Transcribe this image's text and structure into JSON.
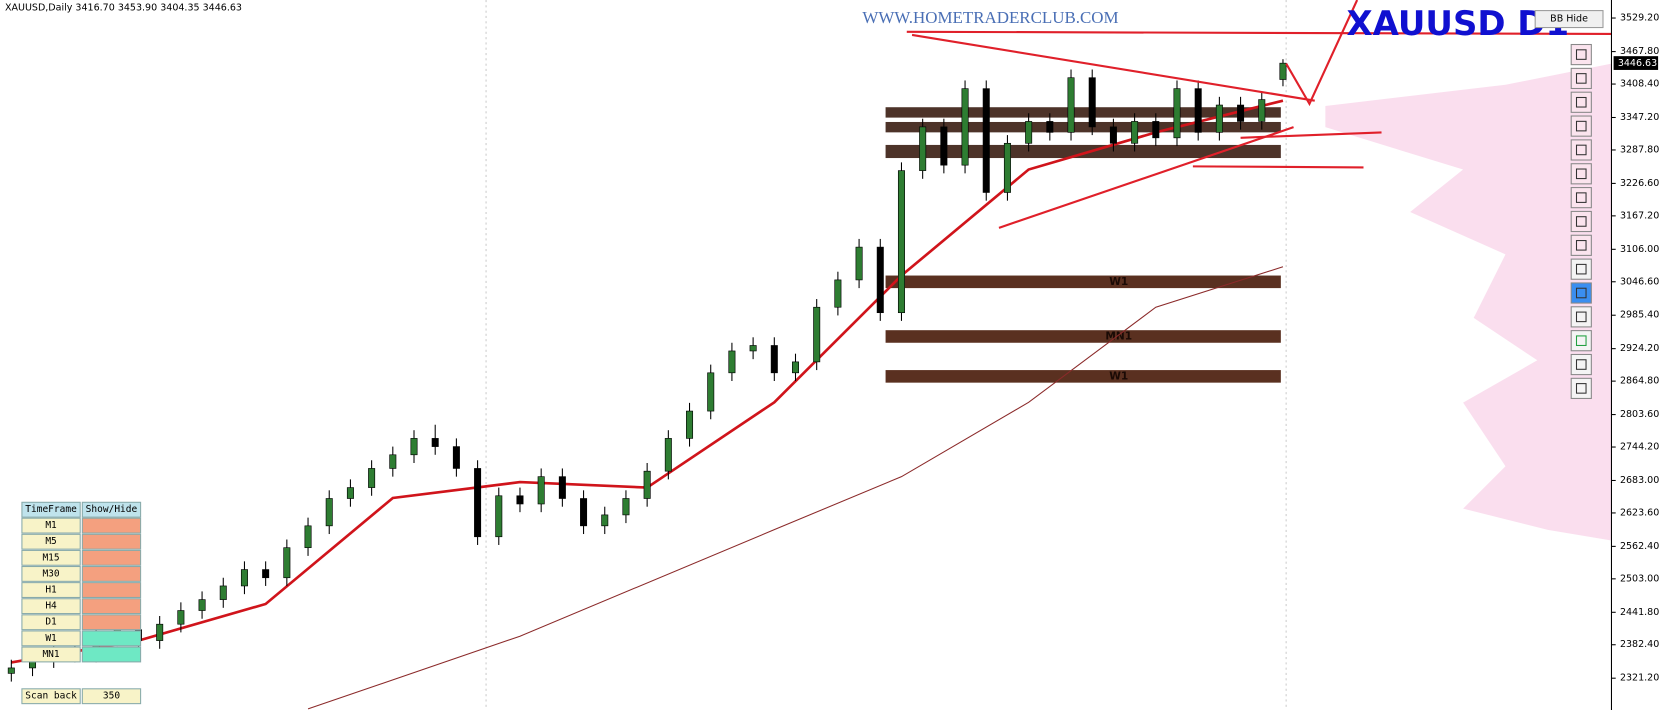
{
  "header": {
    "symbol": "XAUUSD,Daily",
    "ohlc": [
      "3416.70",
      "3453.90",
      "3404.35",
      "3446.63"
    ]
  },
  "watermark": "WWW.HOMETRADERCLUB.COM",
  "chart_title": "XAUUSD  D1",
  "button": "BB Hide",
  "price_tag": "3446.63",
  "chart_data": {
    "type": "candlestick",
    "ylim": [
      2263,
      3562.2
    ],
    "yticks": [
      {
        "value": 3529.2,
        "label": "3529.20"
      },
      {
        "value": 3467.8,
        "label": "3467.80"
      },
      {
        "value": 3408.4,
        "label": "3408.40"
      },
      {
        "value": 3347.2,
        "label": "3347.20"
      },
      {
        "value": 3287.8,
        "label": "3287.80"
      },
      {
        "value": 3226.6,
        "label": "3226.60"
      },
      {
        "value": 3167.2,
        "label": "3167.20"
      },
      {
        "value": 3106,
        "label": "3106.00"
      },
      {
        "value": 3046.6,
        "label": "3046.60"
      },
      {
        "value": 2985.4,
        "label": "2985.40"
      },
      {
        "value": 2924.2,
        "label": "2924.20"
      },
      {
        "value": 2864.8,
        "label": "2864.80"
      },
      {
        "value": 2803.6,
        "label": "2803.60"
      },
      {
        "value": 2744.2,
        "label": "2744.20"
      },
      {
        "value": 2683,
        "label": "2683.00"
      },
      {
        "value": 2623.6,
        "label": "2623.60"
      },
      {
        "value": 2562.4,
        "label": "2562.40"
      },
      {
        "value": 2503,
        "label": "2503.00"
      },
      {
        "value": 2441.8,
        "label": "2441.80"
      },
      {
        "value": 2382.4,
        "label": "2382.40"
      },
      {
        "value": 2321.2,
        "label": "2321.20"
      }
    ],
    "open": [
      2330,
      2340,
      2355,
      2370,
      2365,
      2395,
      2410,
      2390,
      2420,
      2445,
      2465,
      2490,
      2520,
      2505,
      2560,
      2600,
      2650,
      2670,
      2705,
      2730,
      2760,
      2745,
      2705,
      2580,
      2655,
      2640,
      2690,
      2650,
      2600,
      2620,
      2650,
      2700,
      2760,
      2810,
      2880,
      2920,
      2930,
      2880,
      2900,
      3000,
      3050,
      3110,
      2990,
      3250,
      3330,
      3260,
      3400,
      3210,
      3300,
      3340,
      3320,
      3420,
      3330,
      3300,
      3340,
      3310,
      3400,
      3320,
      3370,
      3340,
      3416.7
    ],
    "high": [
      2355,
      2370,
      2385,
      2385,
      2410,
      2425,
      2425,
      2435,
      2460,
      2480,
      2505,
      2535,
      2535,
      2575,
      2615,
      2665,
      2685,
      2720,
      2745,
      2775,
      2785,
      2760,
      2720,
      2670,
      2670,
      2705,
      2705,
      2665,
      2635,
      2665,
      2715,
      2775,
      2825,
      2895,
      2935,
      2945,
      2945,
      2915,
      3015,
      3065,
      3125,
      3125,
      3265,
      3345,
      3345,
      3415,
      3415,
      3315,
      3355,
      3355,
      3435,
      3435,
      3345,
      3355,
      3355,
      3415,
      3415,
      3385,
      3385,
      3395,
      3453.9
    ],
    "low": [
      2315,
      2325,
      2340,
      2350,
      2350,
      2380,
      2375,
      2375,
      2405,
      2430,
      2450,
      2475,
      2490,
      2490,
      2545,
      2585,
      2635,
      2655,
      2690,
      2715,
      2730,
      2690,
      2565,
      2565,
      2625,
      2625,
      2635,
      2585,
      2585,
      2605,
      2635,
      2685,
      2745,
      2795,
      2865,
      2905,
      2865,
      2865,
      2885,
      2985,
      3035,
      2975,
      2975,
      3235,
      3245,
      3245,
      3195,
      3195,
      3285,
      3305,
      3305,
      3315,
      3285,
      3285,
      3295,
      3295,
      3305,
      3305,
      3325,
      3325,
      3404.35
    ],
    "close": [
      2340,
      2355,
      2370,
      2365,
      2395,
      2410,
      2390,
      2420,
      2445,
      2465,
      2490,
      2520,
      2505,
      2560,
      2600,
      2650,
      2670,
      2705,
      2730,
      2760,
      2745,
      2705,
      2580,
      2655,
      2640,
      2690,
      2650,
      2600,
      2620,
      2650,
      2700,
      2760,
      2810,
      2880,
      2920,
      2930,
      2880,
      2900,
      3000,
      3050,
      3110,
      2990,
      3250,
      3330,
      3260,
      3400,
      3210,
      3300,
      3340,
      3320,
      3420,
      3330,
      3300,
      3340,
      3310,
      3400,
      3320,
      3370,
      3340,
      3380,
      3446.63
    ],
    "up_color": "#2e7d32",
    "down_color": "#000000",
    "lines": [
      {
        "color": "#d0141b",
        "x": [
          0,
          6,
          12,
          18,
          24,
          30,
          36,
          42,
          48,
          54,
          60
        ],
        "values": [
          2350,
          2390,
          2457,
          2651,
          2680,
          2670,
          2826,
          3058,
          3252,
          3320,
          3378
        ]
      },
      {
        "color": "#8b2a2a",
        "x": [
          14,
          24,
          36,
          42,
          48,
          54,
          60
        ],
        "values": [
          2265,
          2398,
          2593,
          2690,
          2826,
          3000,
          3074
        ]
      }
    ],
    "zones": [
      {
        "low": 3347,
        "high": 3366
      },
      {
        "low": 3320,
        "high": 3339
      },
      {
        "low": 3273,
        "high": 3297
      },
      {
        "label": "W1",
        "low": 3035,
        "high": 3058
      },
      {
        "label": "MN1",
        "low": 2935,
        "high": 2958
      },
      {
        "label": "W1",
        "low": 2862,
        "high": 2885
      }
    ]
  },
  "panel": {
    "header": [
      "TimeFrame",
      "Show/Hide"
    ],
    "rows": [
      [
        "M1",
        ""
      ],
      [
        "M5",
        ""
      ],
      [
        "M15",
        ""
      ],
      [
        "M30",
        ""
      ],
      [
        "H1",
        ""
      ],
      [
        "H4",
        ""
      ],
      [
        "D1",
        ""
      ],
      [
        "W1",
        ""
      ],
      [
        "MN1",
        ""
      ]
    ],
    "row_colors": [
      "#f4a07f",
      "#f4a07f",
      "#f4a07f",
      "#f4a07f",
      "#f4a07f",
      "#f4a07f",
      "#f4a07f",
      "#6ee8c4",
      "#6ee8c4"
    ],
    "footer": [
      "Scan back",
      "350"
    ]
  }
}
